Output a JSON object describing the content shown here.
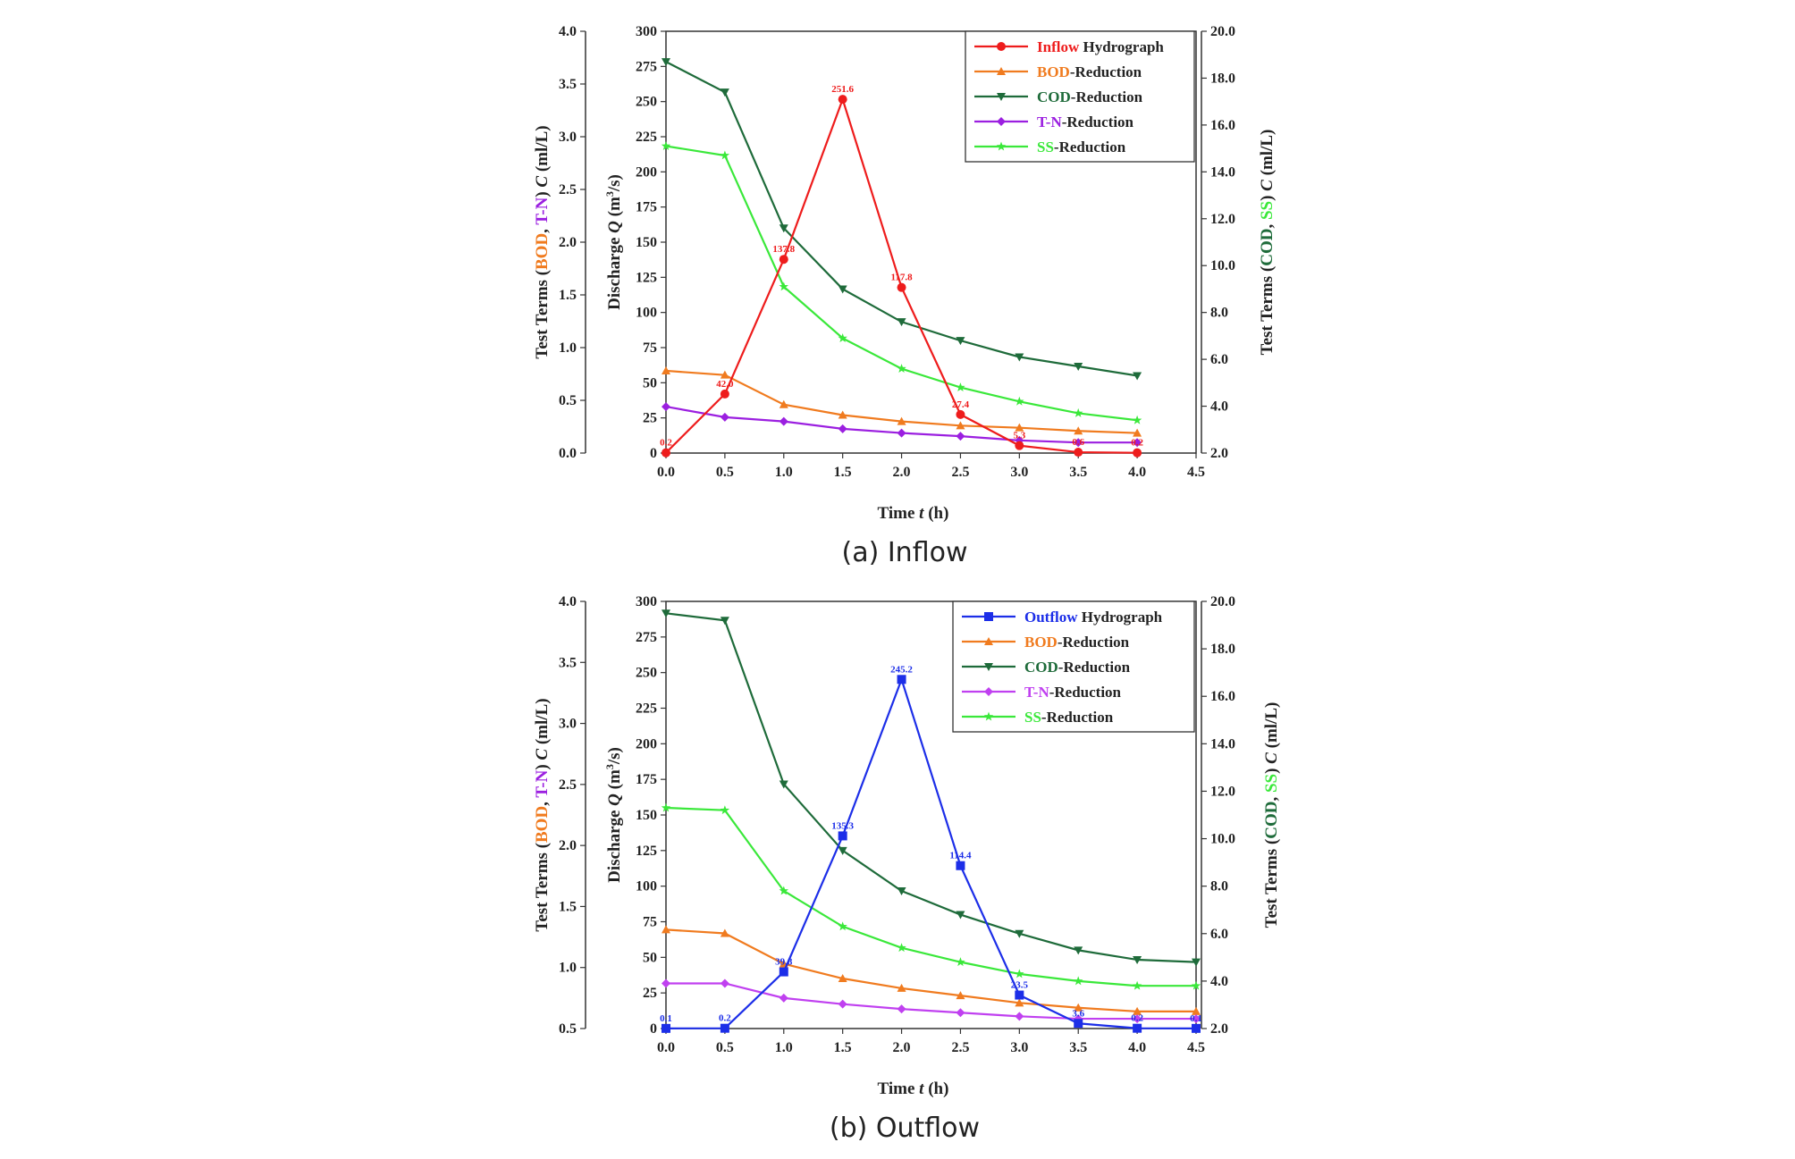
{
  "chart_data": [
    {
      "type": "line",
      "caption": "(a) Inflow",
      "xlabel_parts": [
        "Time ",
        "t",
        " (h)"
      ],
      "xlim": [
        0.0,
        4.5
      ],
      "xticks": [
        "0.0",
        "0.5",
        "1.0",
        "1.5",
        "2.0",
        "2.5",
        "3.0",
        "3.5",
        "4.0",
        "4.5"
      ],
      "left_axis": {
        "title_parts": [
          {
            "t": "Test Terms (",
            "c": "#222222"
          },
          {
            "t": "BOD",
            "c": "#f07b1f"
          },
          {
            "t": ", ",
            "c": "#222222"
          },
          {
            "t": "T-N",
            "c": "#9b1fe0"
          },
          {
            "t": ") ",
            "c": "#222222"
          },
          {
            "t": "C",
            "c": "#222222",
            "italic": true
          },
          {
            "t": " (ml/L)",
            "c": "#222222"
          }
        ],
        "lim": [
          0.0,
          4.0
        ],
        "ticks": [
          "0.0",
          "0.5",
          "1.0",
          "1.5",
          "2.0",
          "2.5",
          "3.0",
          "3.5",
          "4.0"
        ]
      },
      "middle_axis": {
        "title_parts": [
          {
            "t": "Discharge ",
            "c": "#222222"
          },
          {
            "t": "Q",
            "c": "#222222",
            "italic": true
          },
          {
            "t": " (m",
            "c": "#222222"
          },
          {
            "t": "3",
            "c": "#222222",
            "sup": true
          },
          {
            "t": "/s)",
            "c": "#222222"
          }
        ],
        "lim": [
          0,
          300
        ],
        "ticks": [
          "0",
          "25",
          "50",
          "75",
          "100",
          "125",
          "150",
          "175",
          "200",
          "225",
          "250",
          "275",
          "300"
        ]
      },
      "right_axis": {
        "title_parts": [
          {
            "t": "Test Terms (",
            "c": "#222222"
          },
          {
            "t": "COD",
            "c": "#1e6b3a"
          },
          {
            "t": ", ",
            "c": "#222222"
          },
          {
            "t": "SS",
            "c": "#3ae83a"
          },
          {
            "t": ") ",
            "c": "#222222"
          },
          {
            "t": "C",
            "c": "#222222",
            "italic": true
          },
          {
            "t": " (ml/L)",
            "c": "#222222"
          }
        ],
        "lim": [
          2.0,
          20.0
        ],
        "ticks": [
          "2.0",
          "4.0",
          "6.0",
          "8.0",
          "10.0",
          "12.0",
          "14.0",
          "16.0",
          "18.0",
          "20.0"
        ]
      },
      "series": [
        {
          "name": "Inflow Hydrograph",
          "legend_key": "Inflow",
          "legend_rest": " Hydrograph",
          "axis": "middle",
          "color": "#ee1c1c",
          "marker": "circle",
          "x": [
            0.0,
            0.5,
            1.0,
            1.5,
            2.0,
            2.5,
            3.0,
            3.5,
            4.0
          ],
          "values": [
            0.2,
            42.0,
            137.8,
            251.6,
            117.8,
            27.4,
            5.3,
            0.6,
            0.2
          ],
          "labels": [
            "0.2",
            "42.0",
            "137.8",
            "251.6",
            "117.8",
            "27.4",
            "5.3",
            "0.6",
            "0.2"
          ]
        },
        {
          "name": "BOD-Reduction",
          "legend_key": "BOD",
          "legend_rest": "-Reduction",
          "axis": "left",
          "color": "#f07b1f",
          "marker": "triangle-up",
          "x": [
            0.0,
            0.5,
            1.0,
            1.5,
            2.0,
            2.5,
            3.0,
            3.5,
            4.0
          ],
          "values": [
            0.78,
            0.74,
            0.46,
            0.36,
            0.3,
            0.26,
            0.24,
            0.21,
            0.19
          ]
        },
        {
          "name": "COD-Reduction",
          "legend_key": "COD",
          "legend_rest": "-Reduction",
          "axis": "right",
          "color": "#1e6b3a",
          "marker": "triangle-down",
          "x": [
            0.0,
            0.5,
            1.0,
            1.5,
            2.0,
            2.5,
            3.0,
            3.5,
            4.0
          ],
          "values": [
            18.7,
            17.4,
            11.6,
            9.0,
            7.6,
            6.8,
            6.1,
            5.7,
            5.3
          ]
        },
        {
          "name": "T-N-Reduction",
          "legend_key": "T-N",
          "legend_rest": "-Reduction",
          "axis": "left",
          "color": "#9b1fe0",
          "marker": "diamond",
          "x": [
            0.0,
            0.5,
            1.0,
            1.5,
            2.0,
            2.5,
            3.0,
            3.5,
            4.0
          ],
          "values": [
            0.44,
            0.34,
            0.3,
            0.23,
            0.19,
            0.16,
            0.12,
            0.1,
            0.1
          ]
        },
        {
          "name": "SS-Reduction",
          "legend_key": "SS",
          "legend_rest": "-Reduction",
          "axis": "right",
          "color": "#3ae83a",
          "marker": "star",
          "x": [
            0.0,
            0.5,
            1.0,
            1.5,
            2.0,
            2.5,
            3.0,
            3.5,
            4.0
          ],
          "values": [
            15.1,
            14.7,
            9.1,
            6.9,
            5.6,
            4.8,
            4.2,
            3.7,
            3.4
          ]
        }
      ]
    },
    {
      "type": "line",
      "caption": "(b) Outflow",
      "xlabel_parts": [
        "Time ",
        "t",
        " (h)"
      ],
      "xlim": [
        0.0,
        4.5
      ],
      "xticks": [
        "0.0",
        "0.5",
        "1.0",
        "1.5",
        "2.0",
        "2.5",
        "3.0",
        "3.5",
        "4.0",
        "4.5"
      ],
      "left_axis": {
        "title_parts": [
          {
            "t": "Test Terms (",
            "c": "#222222"
          },
          {
            "t": "BOD",
            "c": "#f07b1f"
          },
          {
            "t": ", ",
            "c": "#222222"
          },
          {
            "t": "T-N",
            "c": "#9b1fe0"
          },
          {
            "t": ") ",
            "c": "#222222"
          },
          {
            "t": "C",
            "c": "#222222",
            "italic": true
          },
          {
            "t": " (ml/L)",
            "c": "#222222"
          }
        ],
        "lim": [
          0.5,
          4.0
        ],
        "ticks": [
          "0.5",
          "1.0",
          "1.5",
          "2.0",
          "2.5",
          "3.0",
          "3.5",
          "4.0"
        ]
      },
      "middle_axis": {
        "title_parts": [
          {
            "t": "Discharge ",
            "c": "#222222"
          },
          {
            "t": "Q",
            "c": "#222222",
            "italic": true
          },
          {
            "t": " (m",
            "c": "#222222"
          },
          {
            "t": "3",
            "c": "#222222",
            "sup": true
          },
          {
            "t": "/s)",
            "c": "#222222"
          }
        ],
        "lim": [
          0,
          300
        ],
        "ticks": [
          "0",
          "25",
          "50",
          "75",
          "100",
          "125",
          "150",
          "175",
          "200",
          "225",
          "250",
          "275",
          "300"
        ]
      },
      "right_axis": {
        "title_parts": [
          {
            "t": "Test Terms (",
            "c": "#222222"
          },
          {
            "t": "COD",
            "c": "#1e6b3a"
          },
          {
            "t": ", ",
            "c": "#222222"
          },
          {
            "t": "SS",
            "c": "#3ae83a"
          },
          {
            "t": ") ",
            "c": "#222222"
          },
          {
            "t": "C",
            "c": "#222222",
            "italic": true
          },
          {
            "t": " (ml/L)",
            "c": "#222222"
          }
        ],
        "lim": [
          2.0,
          20.0
        ],
        "ticks": [
          "2.0",
          "4.0",
          "6.0",
          "8.0",
          "10.0",
          "12.0",
          "14.0",
          "16.0",
          "18.0",
          "20.0"
        ]
      },
      "series": [
        {
          "name": "Outflow Hydrograph",
          "legend_key": "Outflow",
          "legend_rest": " Hydrograph",
          "axis": "middle",
          "color": "#1c2ee8",
          "marker": "square",
          "x": [
            0.0,
            0.5,
            1.0,
            1.5,
            2.0,
            2.5,
            3.0,
            3.5,
            4.0,
            4.5
          ],
          "values": [
            0.1,
            0.2,
            39.8,
            135.3,
            245.2,
            114.4,
            23.5,
            3.6,
            0.2,
            0.1
          ],
          "labels": [
            "0.1",
            "0.2",
            "39.8",
            "135.3",
            "245.2",
            "114.4",
            "23.5",
            "3.6",
            "0.2",
            "0.1"
          ]
        },
        {
          "name": "BOD-Reduction",
          "legend_key": "BOD",
          "legend_rest": "-Reduction",
          "axis": "left",
          "color": "#f07b1f",
          "marker": "triangle-up",
          "x": [
            0.0,
            0.5,
            1.0,
            1.5,
            2.0,
            2.5,
            3.0,
            3.5,
            4.0,
            4.5
          ],
          "values": [
            1.31,
            1.28,
            1.03,
            0.91,
            0.83,
            0.77,
            0.71,
            0.67,
            0.64,
            0.64
          ]
        },
        {
          "name": "COD-Reduction",
          "legend_key": "COD",
          "legend_rest": "-Reduction",
          "axis": "right",
          "color": "#1e6b3a",
          "marker": "triangle-down",
          "x": [
            0.0,
            0.5,
            1.0,
            1.5,
            2.0,
            2.5,
            3.0,
            3.5,
            4.0,
            4.5
          ],
          "values": [
            19.5,
            19.2,
            12.3,
            9.5,
            7.8,
            6.8,
            6.0,
            5.3,
            4.9,
            4.8
          ]
        },
        {
          "name": "T-N-Reduction",
          "legend_key": "T-N",
          "legend_rest": "-Reduction",
          "axis": "left",
          "color": "#c040f0",
          "marker": "diamond",
          "x": [
            0.0,
            0.5,
            1.0,
            1.5,
            2.0,
            2.5,
            3.0,
            3.5,
            4.0,
            4.5
          ],
          "values": [
            0.87,
            0.87,
            0.75,
            0.7,
            0.66,
            0.63,
            0.6,
            0.58,
            0.58,
            0.58
          ]
        },
        {
          "name": "SS-Reduction",
          "legend_key": "SS",
          "legend_rest": "-Reduction",
          "axis": "right",
          "color": "#3ae83a",
          "marker": "star",
          "x": [
            0.0,
            0.5,
            1.0,
            1.5,
            2.0,
            2.5,
            3.0,
            3.5,
            4.0,
            4.5
          ],
          "values": [
            11.3,
            11.2,
            7.8,
            6.3,
            5.4,
            4.8,
            4.3,
            4.0,
            3.8,
            3.8
          ]
        }
      ]
    }
  ]
}
